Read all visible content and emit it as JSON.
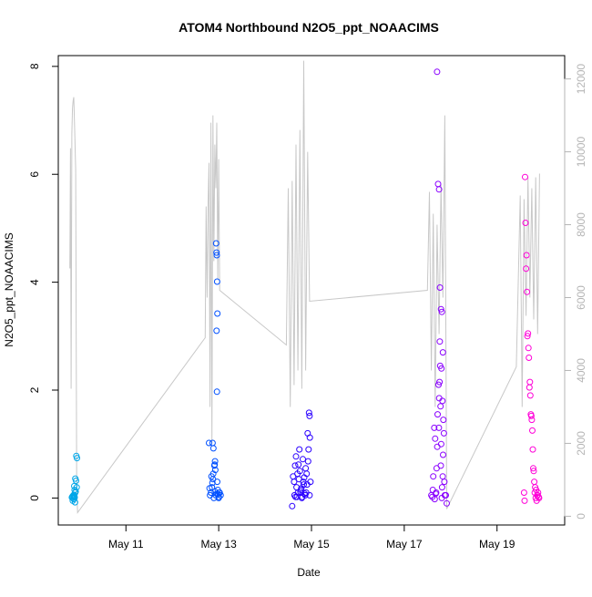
{
  "chart_data": {
    "type": "scatter",
    "title": "ATOM4 Northbound N2O5_ppt_NOAACIMS",
    "xlabel": "Date",
    "ylabel": "N2O5_ppt_NOAACIMS",
    "x_ticks": [
      "May 11",
      "May 13",
      "May 15",
      "May 17",
      "May 19"
    ],
    "x_tick_dates": [
      "2018-05-11",
      "2018-05-13",
      "2018-05-15",
      "2018-05-17",
      "2018-05-19"
    ],
    "xlim": [
      "2018-05-09T13:00",
      "2018-05-20T11:00"
    ],
    "ylim": [
      -0.5,
      8.2
    ],
    "y_ticks": [
      0,
      2,
      4,
      6,
      8
    ],
    "y2_ticks": [
      0,
      2000,
      4000,
      6000,
      8000,
      10000,
      12000
    ],
    "y2lim": [
      -240,
      12640
    ],
    "line_color": "#c8c8c8",
    "point_colors": [
      "#00a6e8",
      "#0050ff",
      "#2a00ff",
      "#8a00ff",
      "#ff00d8"
    ],
    "legend": "none",
    "grid": false,
    "series": [
      {
        "x": [
          "2018-05-09T20:00",
          "2018-05-09T20:20",
          "2018-05-09T20:35",
          "2018-05-09T20:50",
          "2018-05-09T21:00",
          "2018-05-09T21:10",
          "2018-05-09T21:20",
          "2018-05-09T21:30",
          "2018-05-09T21:40",
          "2018-05-09T21:50",
          "2018-05-09T21:15",
          "2018-05-09T21:25",
          "2018-05-09T21:45",
          "2018-05-09T22:00",
          "2018-05-09T22:10",
          "2018-05-09T22:20",
          "2018-05-09T22:30",
          "2018-05-09T22:40",
          "2018-05-09T20:30",
          "2018-05-09T21:05"
        ],
        "y": [
          0.01,
          0.03,
          0.0,
          0.05,
          -0.02,
          0.02,
          0.04,
          0.01,
          -0.08,
          0.36,
          0.22,
          0.15,
          0.1,
          0.12,
          0.32,
          0.78,
          0.2,
          0.74,
          -0.05,
          0.06
        ]
      },
      {
        "x": [
          "2018-05-12T19:00",
          "2018-05-12T19:30",
          "2018-05-12T20:00",
          "2018-05-12T20:30",
          "2018-05-12T21:00",
          "2018-05-12T21:30",
          "2018-05-12T22:00",
          "2018-05-12T22:30",
          "2018-05-12T23:00",
          "2018-05-12T23:30",
          "2018-05-13T00:00",
          "2018-05-13T00:30",
          "2018-05-13T01:00",
          "2018-05-12T19:15",
          "2018-05-12T20:15",
          "2018-05-12T21:15",
          "2018-05-12T22:15",
          "2018-05-12T23:15",
          "2018-05-13T00:15",
          "2018-05-12T22:40",
          "2018-05-12T22:50",
          "2018-05-12T23:00",
          "2018-05-12T23:10",
          "2018-05-12T23:20",
          "2018-05-12T22:55",
          "2018-05-12T23:05",
          "2018-05-12T21:45",
          "2018-05-12T20:45",
          "2018-05-12T21:10",
          "2018-05-12T22:05",
          "2018-05-12T23:40",
          "2018-05-13T00:05",
          "2018-05-12T21:55",
          "2018-05-12T20:50"
        ],
        "y": [
          1.02,
          0.05,
          0.1,
          0.2,
          0.35,
          0.0,
          0.12,
          0.05,
          0.08,
          0.15,
          0.0,
          0.1,
          0.05,
          0.18,
          0.4,
          0.92,
          0.52,
          0.3,
          0.1,
          4.72,
          4.55,
          4.5,
          4.01,
          3.42,
          3.1,
          1.97,
          0.6,
          0.28,
          0.45,
          0.68,
          0.07,
          0.02,
          0.62,
          1.02
        ]
      },
      {
        "x": [
          "2018-05-14T14:00",
          "2018-05-14T15:00",
          "2018-05-14T16:00",
          "2018-05-14T17:00",
          "2018-05-14T18:00",
          "2018-05-14T19:00",
          "2018-05-14T20:00",
          "2018-05-14T21:00",
          "2018-05-14T22:00",
          "2018-05-14T23:00",
          "2018-05-14T14:30",
          "2018-05-14T15:30",
          "2018-05-14T16:30",
          "2018-05-14T17:30",
          "2018-05-14T18:30",
          "2018-05-14T19:30",
          "2018-05-14T20:30",
          "2018-05-14T21:30",
          "2018-05-14T22:30",
          "2018-05-14T23:30",
          "2018-05-14T15:15",
          "2018-05-14T16:15",
          "2018-05-14T17:15",
          "2018-05-14T18:15",
          "2018-05-14T19:15",
          "2018-05-14T20:15",
          "2018-05-14T21:15",
          "2018-05-14T22:15",
          "2018-05-14T22:45",
          "2018-05-14T23:00",
          "2018-05-14T23:10",
          "2018-05-14T21:45",
          "2018-05-14T15:45",
          "2018-05-14T16:45",
          "2018-05-14T17:45",
          "2018-05-14T18:45",
          "2018-05-14T19:45",
          "2018-05-14T20:45"
        ],
        "y": [
          -0.15,
          0.3,
          0.77,
          0.1,
          0.5,
          0.0,
          0.25,
          0.55,
          1.2,
          0.05,
          0.4,
          0.6,
          0.02,
          0.35,
          0.15,
          0.72,
          0.08,
          0.45,
          0.9,
          0.3,
          0.05,
          0.2,
          0.62,
          0.12,
          0.02,
          0.38,
          0.1,
          0.68,
          1.58,
          1.52,
          1.12,
          0.25,
          0.02,
          0.45,
          0.9,
          0.18,
          0.3,
          0.05
        ]
      },
      {
        "x": [
          "2018-05-17T14:00",
          "2018-05-17T15:00",
          "2018-05-17T16:00",
          "2018-05-17T17:00",
          "2018-05-17T17:30",
          "2018-05-17T18:00",
          "2018-05-17T18:30",
          "2018-05-17T19:00",
          "2018-05-17T19:30",
          "2018-05-17T20:00",
          "2018-05-17T21:00",
          "2018-05-17T22:00",
          "2018-05-17T14:30",
          "2018-05-17T15:30",
          "2018-05-17T16:30",
          "2018-05-17T17:15",
          "2018-05-17T17:45",
          "2018-05-17T18:15",
          "2018-05-17T18:45",
          "2018-05-17T19:15",
          "2018-05-17T19:45",
          "2018-05-17T20:15",
          "2018-05-17T20:30",
          "2018-05-17T20:45",
          "2018-05-17T16:45",
          "2018-05-17T17:05",
          "2018-05-17T17:55",
          "2018-05-17T18:05",
          "2018-05-17T18:25",
          "2018-05-17T18:35",
          "2018-05-17T18:55",
          "2018-05-17T19:05",
          "2018-05-17T19:25",
          "2018-05-17T19:35",
          "2018-05-17T19:55",
          "2018-05-17T15:45",
          "2018-05-17T16:15",
          "2018-05-17T14:45",
          "2018-05-17T21:30",
          "2018-05-17T20:05"
        ],
        "y": [
          0.05,
          0.4,
          1.1,
          7.9,
          5.82,
          5.72,
          3.9,
          3.5,
          3.45,
          2.7,
          0.05,
          -0.1,
          0.02,
          1.3,
          0.1,
          1.55,
          2.1,
          2.15,
          1.7,
          2.4,
          1.8,
          1.45,
          1.2,
          0.3,
          0.55,
          0.95,
          1.3,
          1.85,
          2.9,
          2.45,
          0.6,
          1.0,
          0.0,
          0.2,
          0.4,
          -0.02,
          0.08,
          0.15,
          0.05,
          0.8
        ]
      },
      {
        "x": [
          "2018-05-19T14:00",
          "2018-05-19T14:30",
          "2018-05-19T15:00",
          "2018-05-19T15:30",
          "2018-05-19T16:00",
          "2018-05-19T16:30",
          "2018-05-19T17:00",
          "2018-05-19T17:30",
          "2018-05-19T18:00",
          "2018-05-19T18:30",
          "2018-05-19T19:00",
          "2018-05-19T19:30",
          "2018-05-19T20:00",
          "2018-05-19T20:30",
          "2018-05-19T21:00",
          "2018-05-19T21:30",
          "2018-05-19T14:15",
          "2018-05-19T14:45",
          "2018-05-19T15:15",
          "2018-05-19T15:45",
          "2018-05-19T16:15",
          "2018-05-19T16:45",
          "2018-05-19T17:15",
          "2018-05-19T17:45",
          "2018-05-19T18:15",
          "2018-05-19T18:45",
          "2018-05-19T19:15",
          "2018-05-19T19:45",
          "2018-05-19T20:15",
          "2018-05-19T20:45",
          "2018-05-19T21:15",
          "2018-05-19T21:45"
        ],
        "y": [
          0.1,
          5.95,
          4.25,
          3.82,
          3.05,
          2.6,
          2.15,
          1.55,
          1.45,
          0.9,
          0.5,
          0.1,
          0.0,
          -0.05,
          0.05,
          0.02,
          -0.05,
          5.1,
          4.5,
          3.0,
          2.78,
          2.05,
          1.9,
          1.52,
          1.25,
          0.55,
          0.3,
          0.2,
          0.15,
          0.05,
          0.1,
          0.0
        ]
      }
    ],
    "secondary_line": {
      "x": [
        "2018-05-09T19:00",
        "2018-05-09T19:20",
        "2018-05-09T19:40",
        "2018-05-09T20:00",
        "2018-05-09T20:20",
        "2018-05-09T20:40",
        "2018-05-09T21:00",
        "2018-05-09T21:30",
        "2018-05-09T22:00",
        "2018-05-09T22:30",
        "2018-05-09T23:00",
        "2018-05-12T17:00",
        "2018-05-12T17:30",
        "2018-05-12T18:00",
        "2018-05-12T18:30",
        "2018-05-12T19:00",
        "2018-05-12T19:30",
        "2018-05-12T20:00",
        "2018-05-12T20:30",
        "2018-05-12T21:00",
        "2018-05-12T21:30",
        "2018-05-12T22:00",
        "2018-05-12T22:30",
        "2018-05-12T23:00",
        "2018-05-12T23:30",
        "2018-05-13T00:00",
        "2018-05-13T00:30",
        "2018-05-14T11:00",
        "2018-05-14T12:00",
        "2018-05-14T13:00",
        "2018-05-14T14:00",
        "2018-05-14T15:00",
        "2018-05-14T16:00",
        "2018-05-14T17:00",
        "2018-05-14T18:00",
        "2018-05-14T19:00",
        "2018-05-14T20:00",
        "2018-05-14T21:00",
        "2018-05-14T22:00",
        "2018-05-14T23:00",
        "2018-05-17T12:00",
        "2018-05-17T13:00",
        "2018-05-17T14:00",
        "2018-05-17T15:00",
        "2018-05-17T16:00",
        "2018-05-17T17:00",
        "2018-05-17T18:00",
        "2018-05-17T19:00",
        "2018-05-17T20:00",
        "2018-05-17T21:00",
        "2018-05-17T22:00",
        "2018-05-19T10:00",
        "2018-05-19T12:00",
        "2018-05-19T13:00",
        "2018-05-19T14:00",
        "2018-05-19T15:00",
        "2018-05-19T16:00",
        "2018-05-19T17:00",
        "2018-05-19T18:00",
        "2018-05-19T19:00",
        "2018-05-19T20:00",
        "2018-05-19T21:00",
        "2018-05-19T22:00"
      ],
      "y": [
        6800,
        10100,
        3500,
        10500,
        11200,
        11400,
        11500,
        10600,
        9500,
        800,
        100,
        4900,
        8500,
        6000,
        8600,
        9700,
        3000,
        10800,
        2000,
        11000,
        7000,
        10200,
        9000,
        10800,
        6500,
        9800,
        6200,
        4700,
        9000,
        3000,
        9200,
        3600,
        10200,
        4000,
        10600,
        3500,
        12500,
        4000,
        10000,
        5900,
        6200,
        8900,
        4000,
        8300,
        3000,
        8000,
        5000,
        9100,
        6000,
        11000,
        200,
        4100,
        8800,
        3000,
        8700,
        5500,
        9300,
        6000,
        9000,
        5400,
        9300,
        5000,
        9400
      ]
    }
  }
}
